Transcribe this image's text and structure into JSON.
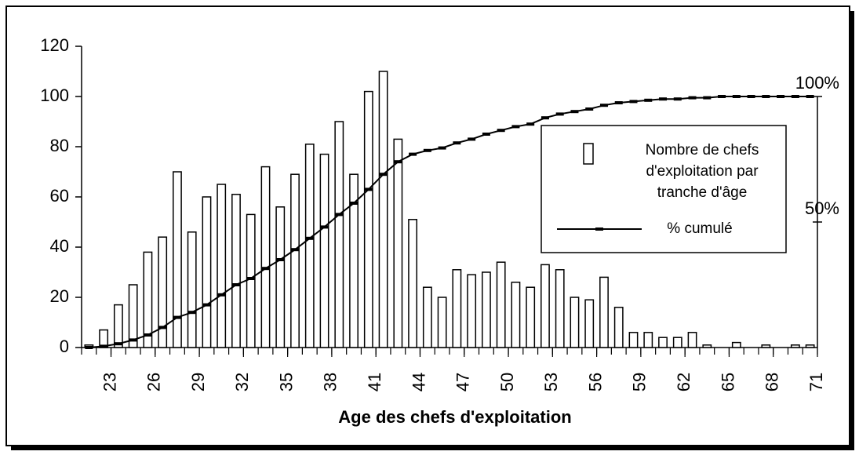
{
  "chart_data": {
    "type": "histogram",
    "xlabel": "Age des chefs d'exploitation",
    "bins": [
      21,
      22,
      23,
      24,
      25,
      26,
      27,
      28,
      29,
      30,
      31,
      32,
      33,
      34,
      35,
      36,
      37,
      38,
      39,
      40,
      41,
      42,
      43,
      44,
      45,
      46,
      47,
      48,
      49,
      50,
      51,
      52,
      53,
      54,
      55,
      56,
      57,
      58,
      59,
      60,
      61,
      62,
      63,
      64,
      65,
      66,
      67,
      68,
      69,
      70,
      71
    ],
    "xlim": [
      21,
      71
    ],
    "xticks": [
      23,
      26,
      29,
      32,
      35,
      38,
      41,
      44,
      47,
      50,
      53,
      56,
      59,
      62,
      65,
      68,
      71
    ],
    "ylim": [
      0,
      120
    ],
    "yticks": [
      0,
      20,
      40,
      60,
      80,
      100,
      120
    ],
    "y2lim": [
      0,
      120
    ],
    "y2ticks": [
      {
        "value": 50,
        "label": "50%"
      },
      {
        "value": 100,
        "label": "100%"
      }
    ],
    "series": [
      {
        "name": "Nombre de chefs d'exploitation par tranche d'âge",
        "color": "#ffffff",
        "values": [
          1,
          7,
          17,
          25,
          38,
          44,
          70,
          46,
          60,
          65,
          61,
          53,
          72,
          56,
          69,
          81,
          77,
          90,
          69,
          102,
          110,
          83,
          51,
          24,
          20,
          31,
          29,
          30,
          34,
          26,
          24,
          33,
          31,
          20,
          19,
          28,
          16,
          6,
          6,
          4,
          4,
          6,
          1,
          0,
          2,
          0,
          1,
          0,
          1,
          1
        ]
      },
      {
        "name": "% cumulé",
        "color": "#000000",
        "axis": "y2",
        "values": [
          0,
          0.5,
          1.5,
          3,
          5,
          8,
          12,
          14,
          17,
          21,
          25,
          27.5,
          31.5,
          35,
          39,
          43.5,
          48,
          53,
          57.5,
          63,
          69,
          74,
          77,
          78.5,
          79.5,
          81.5,
          83,
          85,
          86.5,
          88,
          89,
          91.5,
          93,
          94,
          95,
          96.5,
          97.5,
          98,
          98.5,
          99,
          99,
          99.5,
          99.5,
          100,
          100,
          100,
          100,
          100,
          100,
          100
        ]
      }
    ]
  }
}
